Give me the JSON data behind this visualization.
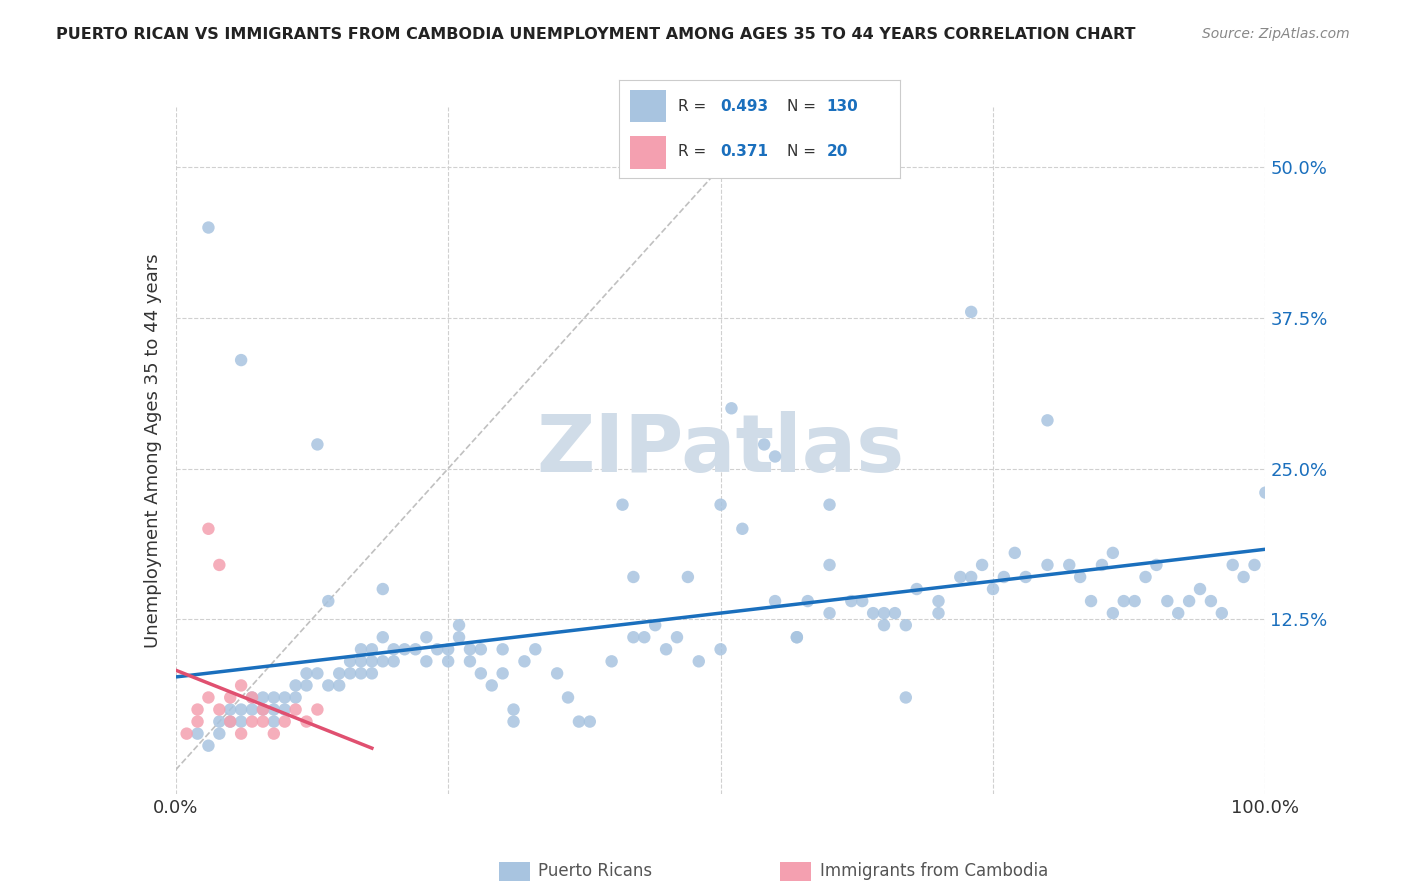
{
  "title": "PUERTO RICAN VS IMMIGRANTS FROM CAMBODIA UNEMPLOYMENT AMONG AGES 35 TO 44 YEARS CORRELATION CHART",
  "source": "Source: ZipAtlas.com",
  "ylabel": "Unemployment Among Ages 35 to 44 years",
  "xlim": [
    0,
    1.0
  ],
  "ylim": [
    -0.02,
    0.55
  ],
  "y_tick_labels": [
    "12.5%",
    "25.0%",
    "37.5%",
    "50.0%"
  ],
  "y_ticks": [
    0.125,
    0.25,
    0.375,
    0.5
  ],
  "blue_R": 0.493,
  "blue_N": 130,
  "pink_R": 0.371,
  "pink_N": 20,
  "blue_color": "#a8c4e0",
  "pink_color": "#f4a0b0",
  "blue_line_color": "#1a6fbd",
  "pink_line_color": "#e05070",
  "dashed_line_color": "#c0c0c0",
  "watermark_color": "#d0dce8",
  "background_color": "#ffffff",
  "grid_color": "#d0d0d0",
  "blue_scatter_x": [
    0.02,
    0.03,
    0.04,
    0.04,
    0.05,
    0.05,
    0.06,
    0.06,
    0.07,
    0.07,
    0.08,
    0.08,
    0.09,
    0.09,
    0.09,
    0.1,
    0.1,
    0.11,
    0.11,
    0.12,
    0.12,
    0.13,
    0.14,
    0.14,
    0.15,
    0.15,
    0.16,
    0.16,
    0.17,
    0.17,
    0.17,
    0.18,
    0.18,
    0.18,
    0.19,
    0.19,
    0.2,
    0.2,
    0.21,
    0.22,
    0.23,
    0.23,
    0.24,
    0.25,
    0.25,
    0.26,
    0.27,
    0.27,
    0.28,
    0.28,
    0.29,
    0.3,
    0.31,
    0.31,
    0.32,
    0.33,
    0.35,
    0.36,
    0.37,
    0.38,
    0.4,
    0.41,
    0.42,
    0.43,
    0.44,
    0.45,
    0.46,
    0.47,
    0.48,
    0.5,
    0.5,
    0.52,
    0.54,
    0.55,
    0.55,
    0.57,
    0.58,
    0.6,
    0.6,
    0.62,
    0.63,
    0.64,
    0.65,
    0.65,
    0.66,
    0.67,
    0.68,
    0.7,
    0.7,
    0.72,
    0.73,
    0.74,
    0.75,
    0.76,
    0.77,
    0.78,
    0.8,
    0.82,
    0.83,
    0.84,
    0.85,
    0.86,
    0.87,
    0.88,
    0.89,
    0.9,
    0.91,
    0.92,
    0.93,
    0.94,
    0.95,
    0.96,
    0.97,
    0.98,
    0.99,
    1.0,
    0.03,
    0.06,
    0.13,
    0.19,
    0.26,
    0.3,
    0.42,
    0.51,
    0.57,
    0.6,
    0.67,
    0.73,
    0.8,
    0.86
  ],
  "blue_scatter_y": [
    0.03,
    0.02,
    0.04,
    0.03,
    0.04,
    0.05,
    0.04,
    0.05,
    0.05,
    0.06,
    0.05,
    0.06,
    0.05,
    0.04,
    0.06,
    0.06,
    0.05,
    0.07,
    0.06,
    0.07,
    0.08,
    0.08,
    0.14,
    0.07,
    0.07,
    0.08,
    0.08,
    0.09,
    0.09,
    0.08,
    0.1,
    0.09,
    0.08,
    0.1,
    0.09,
    0.11,
    0.09,
    0.1,
    0.1,
    0.1,
    0.09,
    0.11,
    0.1,
    0.1,
    0.09,
    0.11,
    0.1,
    0.09,
    0.1,
    0.08,
    0.07,
    0.08,
    0.04,
    0.05,
    0.09,
    0.1,
    0.08,
    0.06,
    0.04,
    0.04,
    0.09,
    0.22,
    0.11,
    0.11,
    0.12,
    0.1,
    0.11,
    0.16,
    0.09,
    0.22,
    0.1,
    0.2,
    0.27,
    0.26,
    0.14,
    0.11,
    0.14,
    0.22,
    0.13,
    0.14,
    0.14,
    0.13,
    0.13,
    0.12,
    0.13,
    0.12,
    0.15,
    0.14,
    0.13,
    0.16,
    0.16,
    0.17,
    0.15,
    0.16,
    0.18,
    0.16,
    0.17,
    0.17,
    0.16,
    0.14,
    0.17,
    0.13,
    0.14,
    0.14,
    0.16,
    0.17,
    0.14,
    0.13,
    0.14,
    0.15,
    0.14,
    0.13,
    0.17,
    0.16,
    0.17,
    0.23,
    0.45,
    0.34,
    0.27,
    0.15,
    0.12,
    0.1,
    0.16,
    0.3,
    0.11,
    0.17,
    0.06,
    0.38,
    0.29,
    0.18
  ],
  "pink_scatter_x": [
    0.01,
    0.02,
    0.02,
    0.03,
    0.03,
    0.04,
    0.04,
    0.05,
    0.05,
    0.06,
    0.06,
    0.07,
    0.07,
    0.08,
    0.08,
    0.09,
    0.1,
    0.11,
    0.12,
    0.13
  ],
  "pink_scatter_y": [
    0.03,
    0.04,
    0.05,
    0.2,
    0.06,
    0.05,
    0.17,
    0.04,
    0.06,
    0.03,
    0.07,
    0.04,
    0.06,
    0.04,
    0.05,
    0.03,
    0.04,
    0.05,
    0.04,
    0.05
  ]
}
